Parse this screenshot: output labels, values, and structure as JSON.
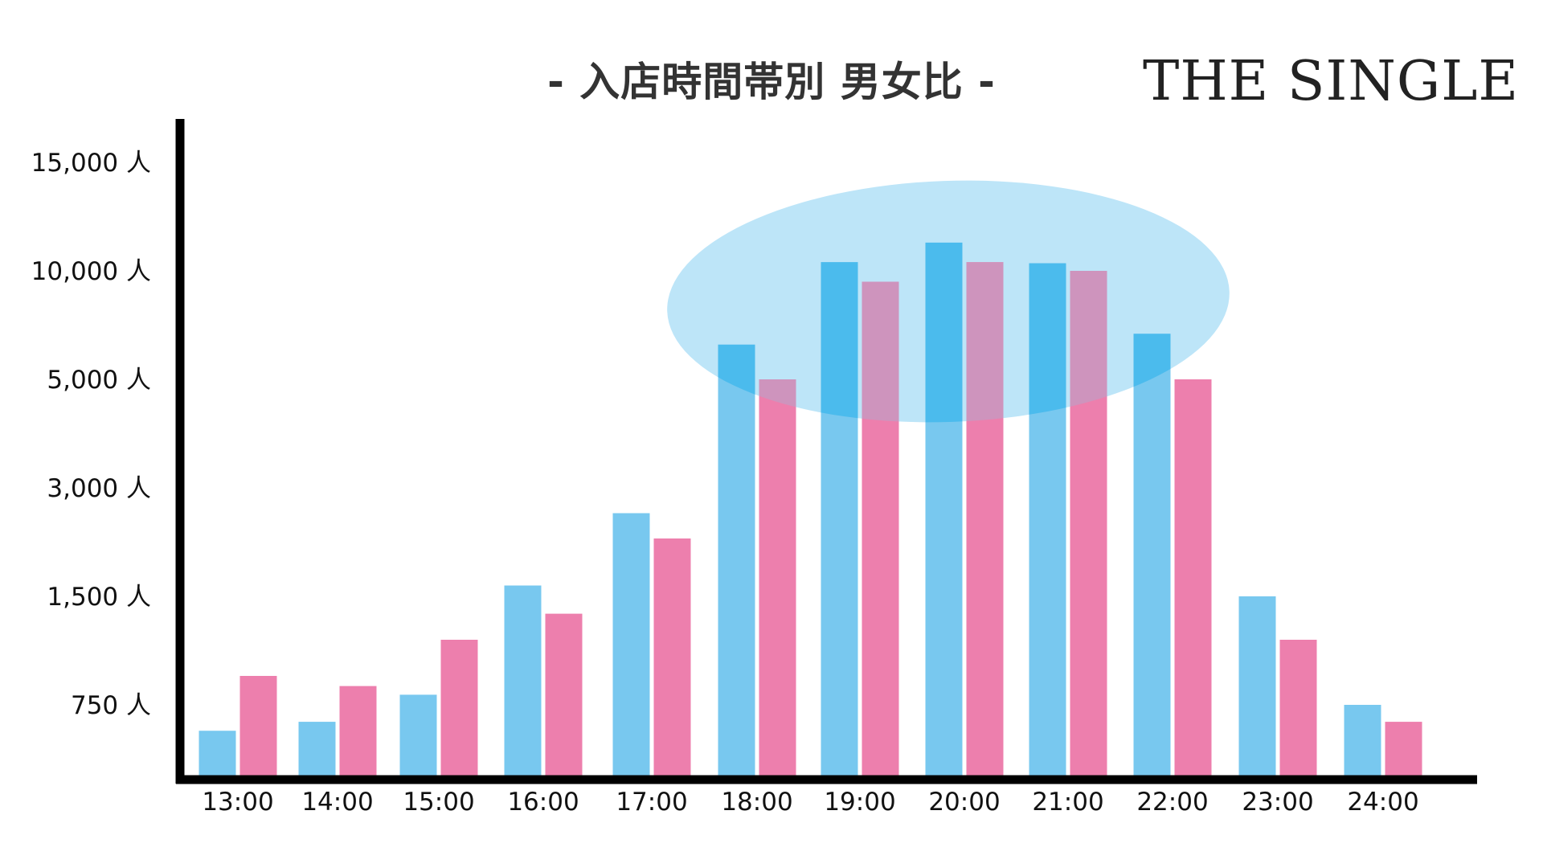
{
  "title": "- 入店時間帯別 男女比 -",
  "brand": "THE SINGLE",
  "chart_data": {
    "type": "bar",
    "categories": [
      "13:00",
      "14:00",
      "15:00",
      "16:00",
      "17:00",
      "18:00",
      "19:00",
      "20:00",
      "21:00",
      "22:00",
      "23:00",
      "24:00"
    ],
    "series": [
      {
        "color": "#78c8ef",
        "highlight_color": "#4bbbed",
        "values": [
          490,
          580,
          820,
          1650,
          2650,
          6600,
          10400,
          11300,
          10350,
          7100,
          1500,
          750
        ]
      },
      {
        "color": "#ed7fad",
        "highlight_color": "#ce94bd",
        "values": [
          950,
          880,
          1200,
          1380,
          2300,
          5000,
          9500,
          10400,
          10000,
          5000,
          1200,
          580
        ]
      }
    ],
    "y_ticks": [
      {
        "value": 750,
        "label": "750 人"
      },
      {
        "value": 1500,
        "label": "1,500 人"
      },
      {
        "value": 3000,
        "label": "3,000 人"
      },
      {
        "value": 5000,
        "label": "5,000 人"
      },
      {
        "value": 10000,
        "label": "10,000 人"
      },
      {
        "value": 15000,
        "label": "15,000 人"
      }
    ],
    "y_scale": "nonlinear (evenly spaced tick labels)",
    "grid": false,
    "legend": "none",
    "highlight": {
      "from": "18:00",
      "to": "22:00",
      "color": "#bde5f8"
    }
  }
}
